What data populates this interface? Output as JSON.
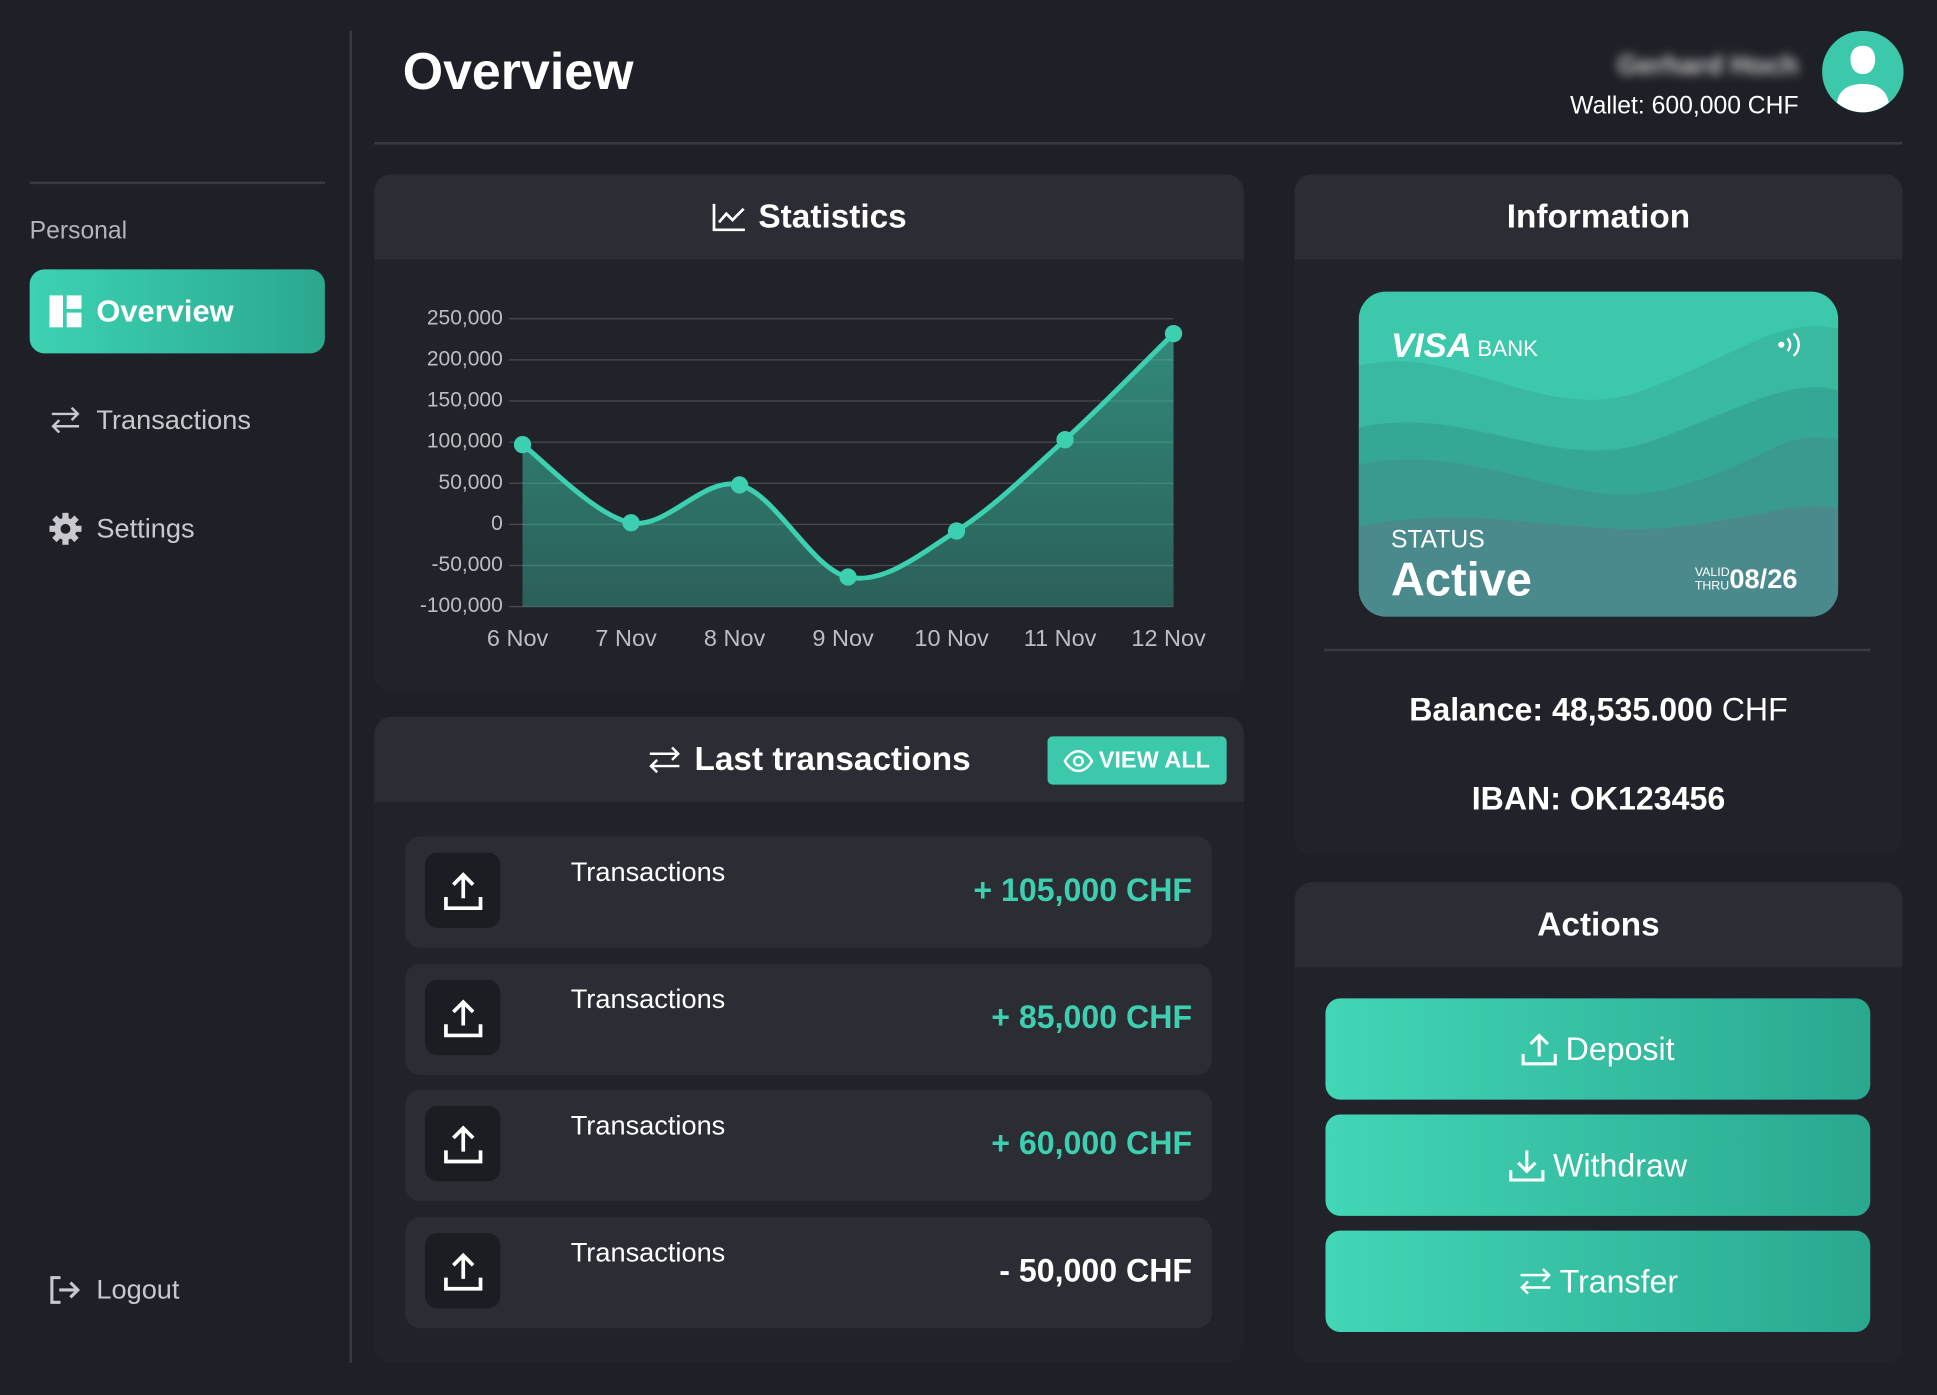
{
  "sidebar": {
    "section": "Personal",
    "nav": [
      "Overview",
      "Transactions",
      "Settings"
    ],
    "logout": "Logout"
  },
  "header": {
    "title": "Overview",
    "user_name": "Gerhard Hoch",
    "wallet": "Wallet: 600,000 CHF"
  },
  "chart_data": {
    "type": "line",
    "title": "Statistics",
    "categories": [
      "6 Nov",
      "7 Nov",
      "8 Nov",
      "9 Nov",
      "10 Nov",
      "11 Nov",
      "12 Nov"
    ],
    "values": [
      97000,
      2000,
      48000,
      -64000,
      -8000,
      103000,
      232000
    ],
    "color": "#3ccfb0",
    "area": true,
    "ylim": [
      -100000,
      250000
    ],
    "yticks": [
      {
        "value": -100000,
        "label": "-100,000"
      },
      {
        "value": -50000,
        "label": "-50,000"
      },
      0,
      {
        "value": 50000,
        "label": "50,000"
      },
      {
        "value": 100000,
        "label": "100,000"
      },
      {
        "value": 150000,
        "label": "150,000"
      },
      {
        "value": 200000,
        "label": "200,000"
      },
      {
        "value": 250000,
        "label": "250,000"
      }
    ],
    "grid": true
  },
  "transactions": {
    "title": "Last transactions",
    "view_all": "VIEW ALL",
    "items": [
      {
        "label": "Transactions",
        "amount": "+ 105,000 CHF",
        "color": "#3ccfb0"
      },
      {
        "label": "Transactions",
        "amount": "+ 85,000 CHF",
        "color": "#3ccfb0"
      },
      {
        "label": "Transactions",
        "amount": "+ 60,000 CHF",
        "color": "#3ccfb0"
      },
      {
        "label": "Transactions",
        "amount": "- 50,000 CHF",
        "color": "#ffffff"
      }
    ]
  },
  "information": {
    "title": "Information",
    "card": {
      "brand": "VISA",
      "bank": "BANK",
      "status_label": "STATUS",
      "status": "Active",
      "valid_label": "VALID THRU",
      "valid": "08/26"
    },
    "balance_label": "Balance:",
    "balance_value": "48,535.000",
    "balance_currency": "CHF",
    "iban": "IBAN: OK123456"
  },
  "actions": {
    "title": "Actions",
    "buttons": [
      "Deposit",
      "Withdraw",
      "Transfer"
    ]
  }
}
